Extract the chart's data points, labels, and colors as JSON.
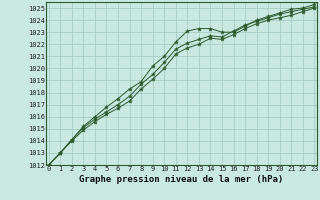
{
  "title": "Graphe pression niveau de la mer (hPa)",
  "background_color": "#c8e8e0",
  "grid_color": "#a0c8bc",
  "line_color": "#2d5a2d",
  "spine_color": "#2d5a2d",
  "x_ticks": [
    0,
    1,
    2,
    3,
    4,
    5,
    6,
    7,
    8,
    9,
    10,
    11,
    12,
    13,
    14,
    15,
    16,
    17,
    18,
    19,
    20,
    21,
    22,
    23
  ],
  "ylim": [
    1012,
    1025.5
  ],
  "xlim": [
    -0.2,
    23.2
  ],
  "yticks": [
    1012,
    1013,
    1014,
    1015,
    1016,
    1017,
    1018,
    1019,
    1020,
    1021,
    1022,
    1023,
    1024,
    1025
  ],
  "series1": [
    1012.0,
    1013.0,
    1014.1,
    1015.2,
    1016.0,
    1016.8,
    1017.5,
    1018.3,
    1018.9,
    1020.2,
    1021.0,
    1022.2,
    1023.1,
    1023.3,
    1023.3,
    1023.0,
    1023.0,
    1023.5,
    1024.0,
    1024.3,
    1024.6,
    1024.9,
    1025.0,
    1025.3
  ],
  "series2": [
    1012.0,
    1013.0,
    1014.1,
    1015.1,
    1015.8,
    1016.4,
    1017.0,
    1017.7,
    1018.7,
    1019.5,
    1020.5,
    1021.6,
    1022.1,
    1022.4,
    1022.7,
    1022.6,
    1023.1,
    1023.6,
    1023.9,
    1024.2,
    1024.5,
    1024.7,
    1024.9,
    1025.1
  ],
  "series3": [
    1012.0,
    1013.0,
    1014.0,
    1014.9,
    1015.6,
    1016.2,
    1016.7,
    1017.3,
    1018.3,
    1019.1,
    1020.0,
    1021.2,
    1021.7,
    1022.0,
    1022.5,
    1022.4,
    1022.8,
    1023.3,
    1023.7,
    1024.0,
    1024.2,
    1024.4,
    1024.7,
    1025.0
  ],
  "title_fontsize": 6.5,
  "tick_fontsize": 5.0
}
